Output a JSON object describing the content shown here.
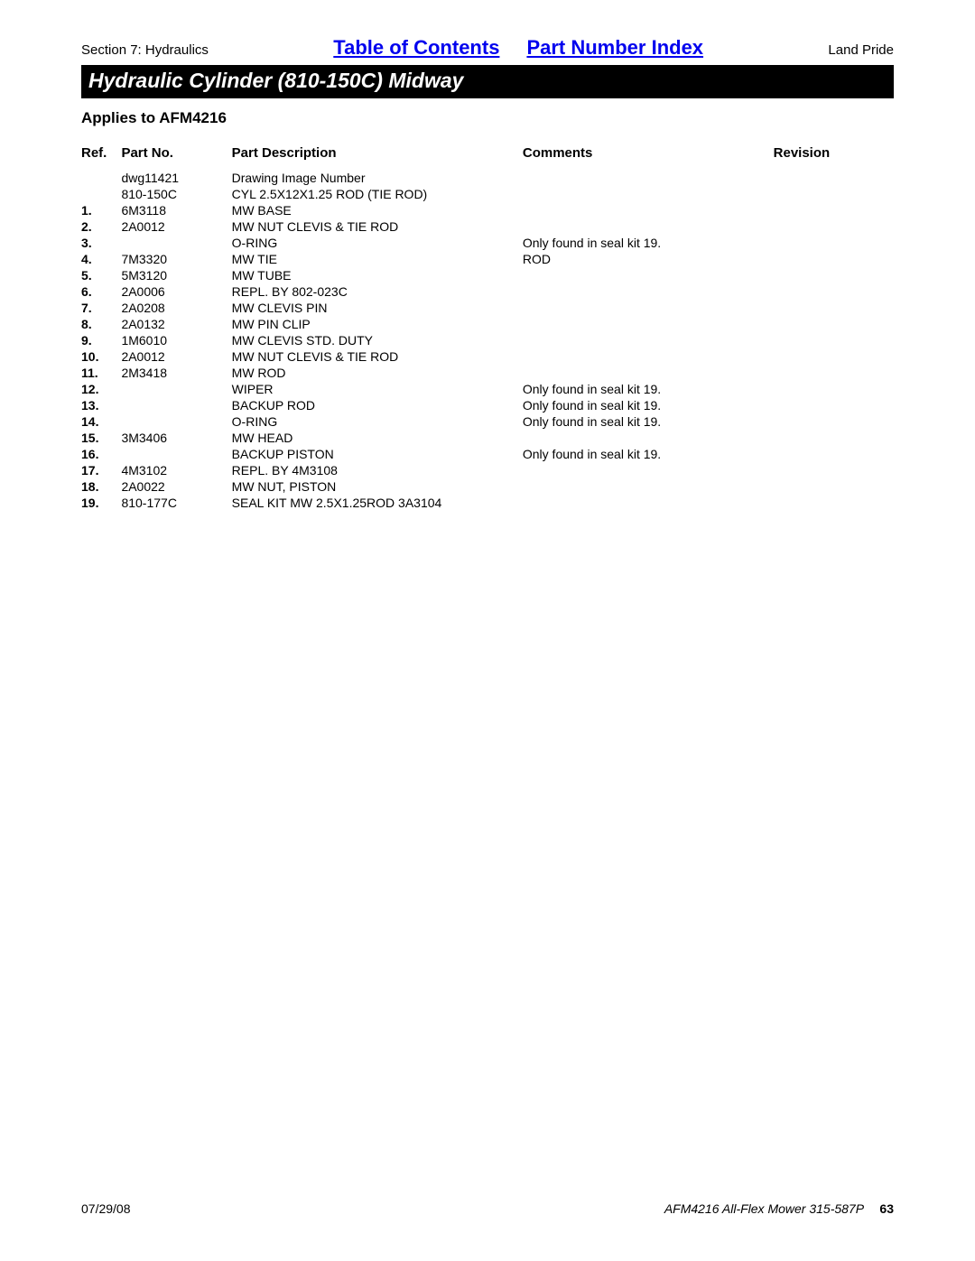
{
  "header": {
    "section_label": "Section 7: Hydraulics",
    "toc_link": "Table of Contents",
    "pni_link": "Part Number Index",
    "brand": "Land Pride"
  },
  "title_bar": "Hydraulic Cylinder (810-150C) Midway",
  "applies_to": "Applies to AFM4216",
  "table": {
    "headers": {
      "ref": "Ref.",
      "part_no": "Part No.",
      "desc": "Part Description",
      "comments": "Comments",
      "revision": "Revision"
    },
    "rows": [
      {
        "ref": "",
        "part": "dwg11421",
        "desc": "Drawing Image Number",
        "comm": "",
        "rev": ""
      },
      {
        "ref": "",
        "part": "810-150C",
        "desc": "CYL 2.5X12X1.25 ROD (TIE ROD)",
        "comm": "",
        "rev": ""
      },
      {
        "ref": "1.",
        "part": "6M3118",
        "desc": "MW BASE",
        "comm": "",
        "rev": ""
      },
      {
        "ref": "2.",
        "part": "2A0012",
        "desc": "MW NUT CLEVIS & TIE ROD",
        "comm": "",
        "rev": ""
      },
      {
        "ref": "3.",
        "part": "",
        "desc": "O-RING",
        "comm": "Only found in seal kit 19.",
        "rev": ""
      },
      {
        "ref": "4.",
        "part": "7M3320",
        "desc": "MW TIE",
        "comm": "ROD",
        "rev": ""
      },
      {
        "ref": "5.",
        "part": "5M3120",
        "desc": "MW TUBE",
        "comm": "",
        "rev": ""
      },
      {
        "ref": "6.",
        "part": "2A0006",
        "desc": "REPL. BY 802-023C",
        "comm": "",
        "rev": ""
      },
      {
        "ref": "7.",
        "part": "2A0208",
        "desc": "MW CLEVIS PIN",
        "comm": "",
        "rev": ""
      },
      {
        "ref": "8.",
        "part": "2A0132",
        "desc": "MW PIN CLIP",
        "comm": "",
        "rev": ""
      },
      {
        "ref": "9.",
        "part": "1M6010",
        "desc": "MW CLEVIS STD. DUTY",
        "comm": "",
        "rev": ""
      },
      {
        "ref": "10.",
        "part": "2A0012",
        "desc": "MW NUT CLEVIS & TIE ROD",
        "comm": "",
        "rev": ""
      },
      {
        "ref": "11.",
        "part": "2M3418",
        "desc": "MW ROD",
        "comm": "",
        "rev": ""
      },
      {
        "ref": "12.",
        "part": "",
        "desc": "WIPER",
        "comm": "Only found in seal kit 19.",
        "rev": ""
      },
      {
        "ref": "13.",
        "part": "",
        "desc": "BACKUP ROD",
        "comm": "Only found in seal kit 19.",
        "rev": ""
      },
      {
        "ref": "14.",
        "part": "",
        "desc": "O-RING",
        "comm": "Only found in seal kit 19.",
        "rev": ""
      },
      {
        "ref": "15.",
        "part": "3M3406",
        "desc": "MW HEAD",
        "comm": "",
        "rev": ""
      },
      {
        "ref": "16.",
        "part": "",
        "desc": "BACKUP PISTON",
        "comm": "Only found in seal kit 19.",
        "rev": ""
      },
      {
        "ref": "17.",
        "part": "4M3102",
        "desc": "REPL. BY 4M3108",
        "comm": "",
        "rev": ""
      },
      {
        "ref": "18.",
        "part": "2A0022",
        "desc": "MW NUT, PISTON",
        "comm": "",
        "rev": ""
      },
      {
        "ref": "19.",
        "part": "810-177C",
        "desc": "SEAL KIT MW 2.5X1.25ROD 3A3104",
        "comm": "",
        "rev": ""
      }
    ]
  },
  "footer": {
    "date": "07/29/08",
    "doc": "AFM4216 All-Flex Mower 315-587P",
    "page": "63"
  }
}
